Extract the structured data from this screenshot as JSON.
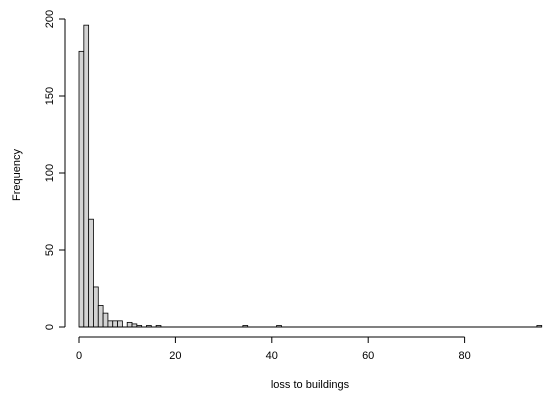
{
  "chart_data": {
    "type": "bar",
    "title": "",
    "xlabel": "loss to buildings",
    "ylabel": "Frequency",
    "xlim": [
      0,
      96
    ],
    "ylim": [
      0,
      200
    ],
    "bin_width": 1,
    "x_ticks": [
      0,
      20,
      40,
      60,
      80
    ],
    "y_ticks": [
      0,
      50,
      100,
      150,
      200
    ],
    "grid": false,
    "legend": "none",
    "bar_color": "#d3d3d3",
    "bins": [
      {
        "start": 0,
        "value": 179
      },
      {
        "start": 1,
        "value": 196
      },
      {
        "start": 2,
        "value": 70
      },
      {
        "start": 3,
        "value": 26
      },
      {
        "start": 4,
        "value": 14
      },
      {
        "start": 5,
        "value": 9
      },
      {
        "start": 6,
        "value": 4
      },
      {
        "start": 7,
        "value": 4
      },
      {
        "start": 8,
        "value": 4
      },
      {
        "start": 9,
        "value": 0
      },
      {
        "start": 10,
        "value": 3
      },
      {
        "start": 11,
        "value": 2
      },
      {
        "start": 12,
        "value": 1
      },
      {
        "start": 13,
        "value": 0
      },
      {
        "start": 14,
        "value": 1
      },
      {
        "start": 15,
        "value": 0
      },
      {
        "start": 16,
        "value": 1
      },
      {
        "start": 34,
        "value": 1
      },
      {
        "start": 41,
        "value": 1
      },
      {
        "start": 95,
        "value": 1
      }
    ]
  }
}
